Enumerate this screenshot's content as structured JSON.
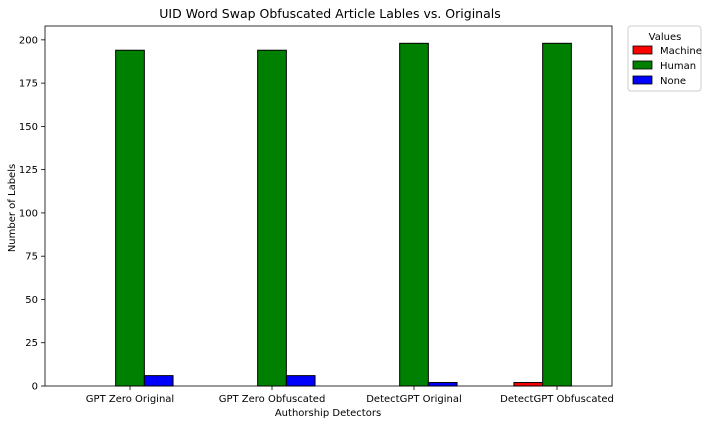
{
  "chart_data": {
    "type": "bar",
    "title": "UID Word Swap Obfuscated Article Lables vs. Originals",
    "xlabel": "Authorship Detectors",
    "ylabel": "Number of Labels",
    "categories": [
      "GPT Zero Original",
      "GPT Zero Obfuscated",
      "DetectGPT Original",
      "DetectGPT Obfuscated"
    ],
    "series": [
      {
        "name": "Machine",
        "color": "#ff0000",
        "values": [
          0,
          0,
          0,
          2
        ]
      },
      {
        "name": "Human",
        "color": "#008000",
        "values": [
          194,
          194,
          198,
          198
        ]
      },
      {
        "name": "None",
        "color": "#0000ff",
        "values": [
          6,
          6,
          2,
          0
        ]
      }
    ],
    "ylim": [
      0,
      208
    ],
    "yticks": [
      0,
      25,
      50,
      75,
      100,
      125,
      150,
      175,
      200
    ],
    "grid": false,
    "legend": {
      "title": "Values",
      "placement": "outside-top-right"
    }
  }
}
